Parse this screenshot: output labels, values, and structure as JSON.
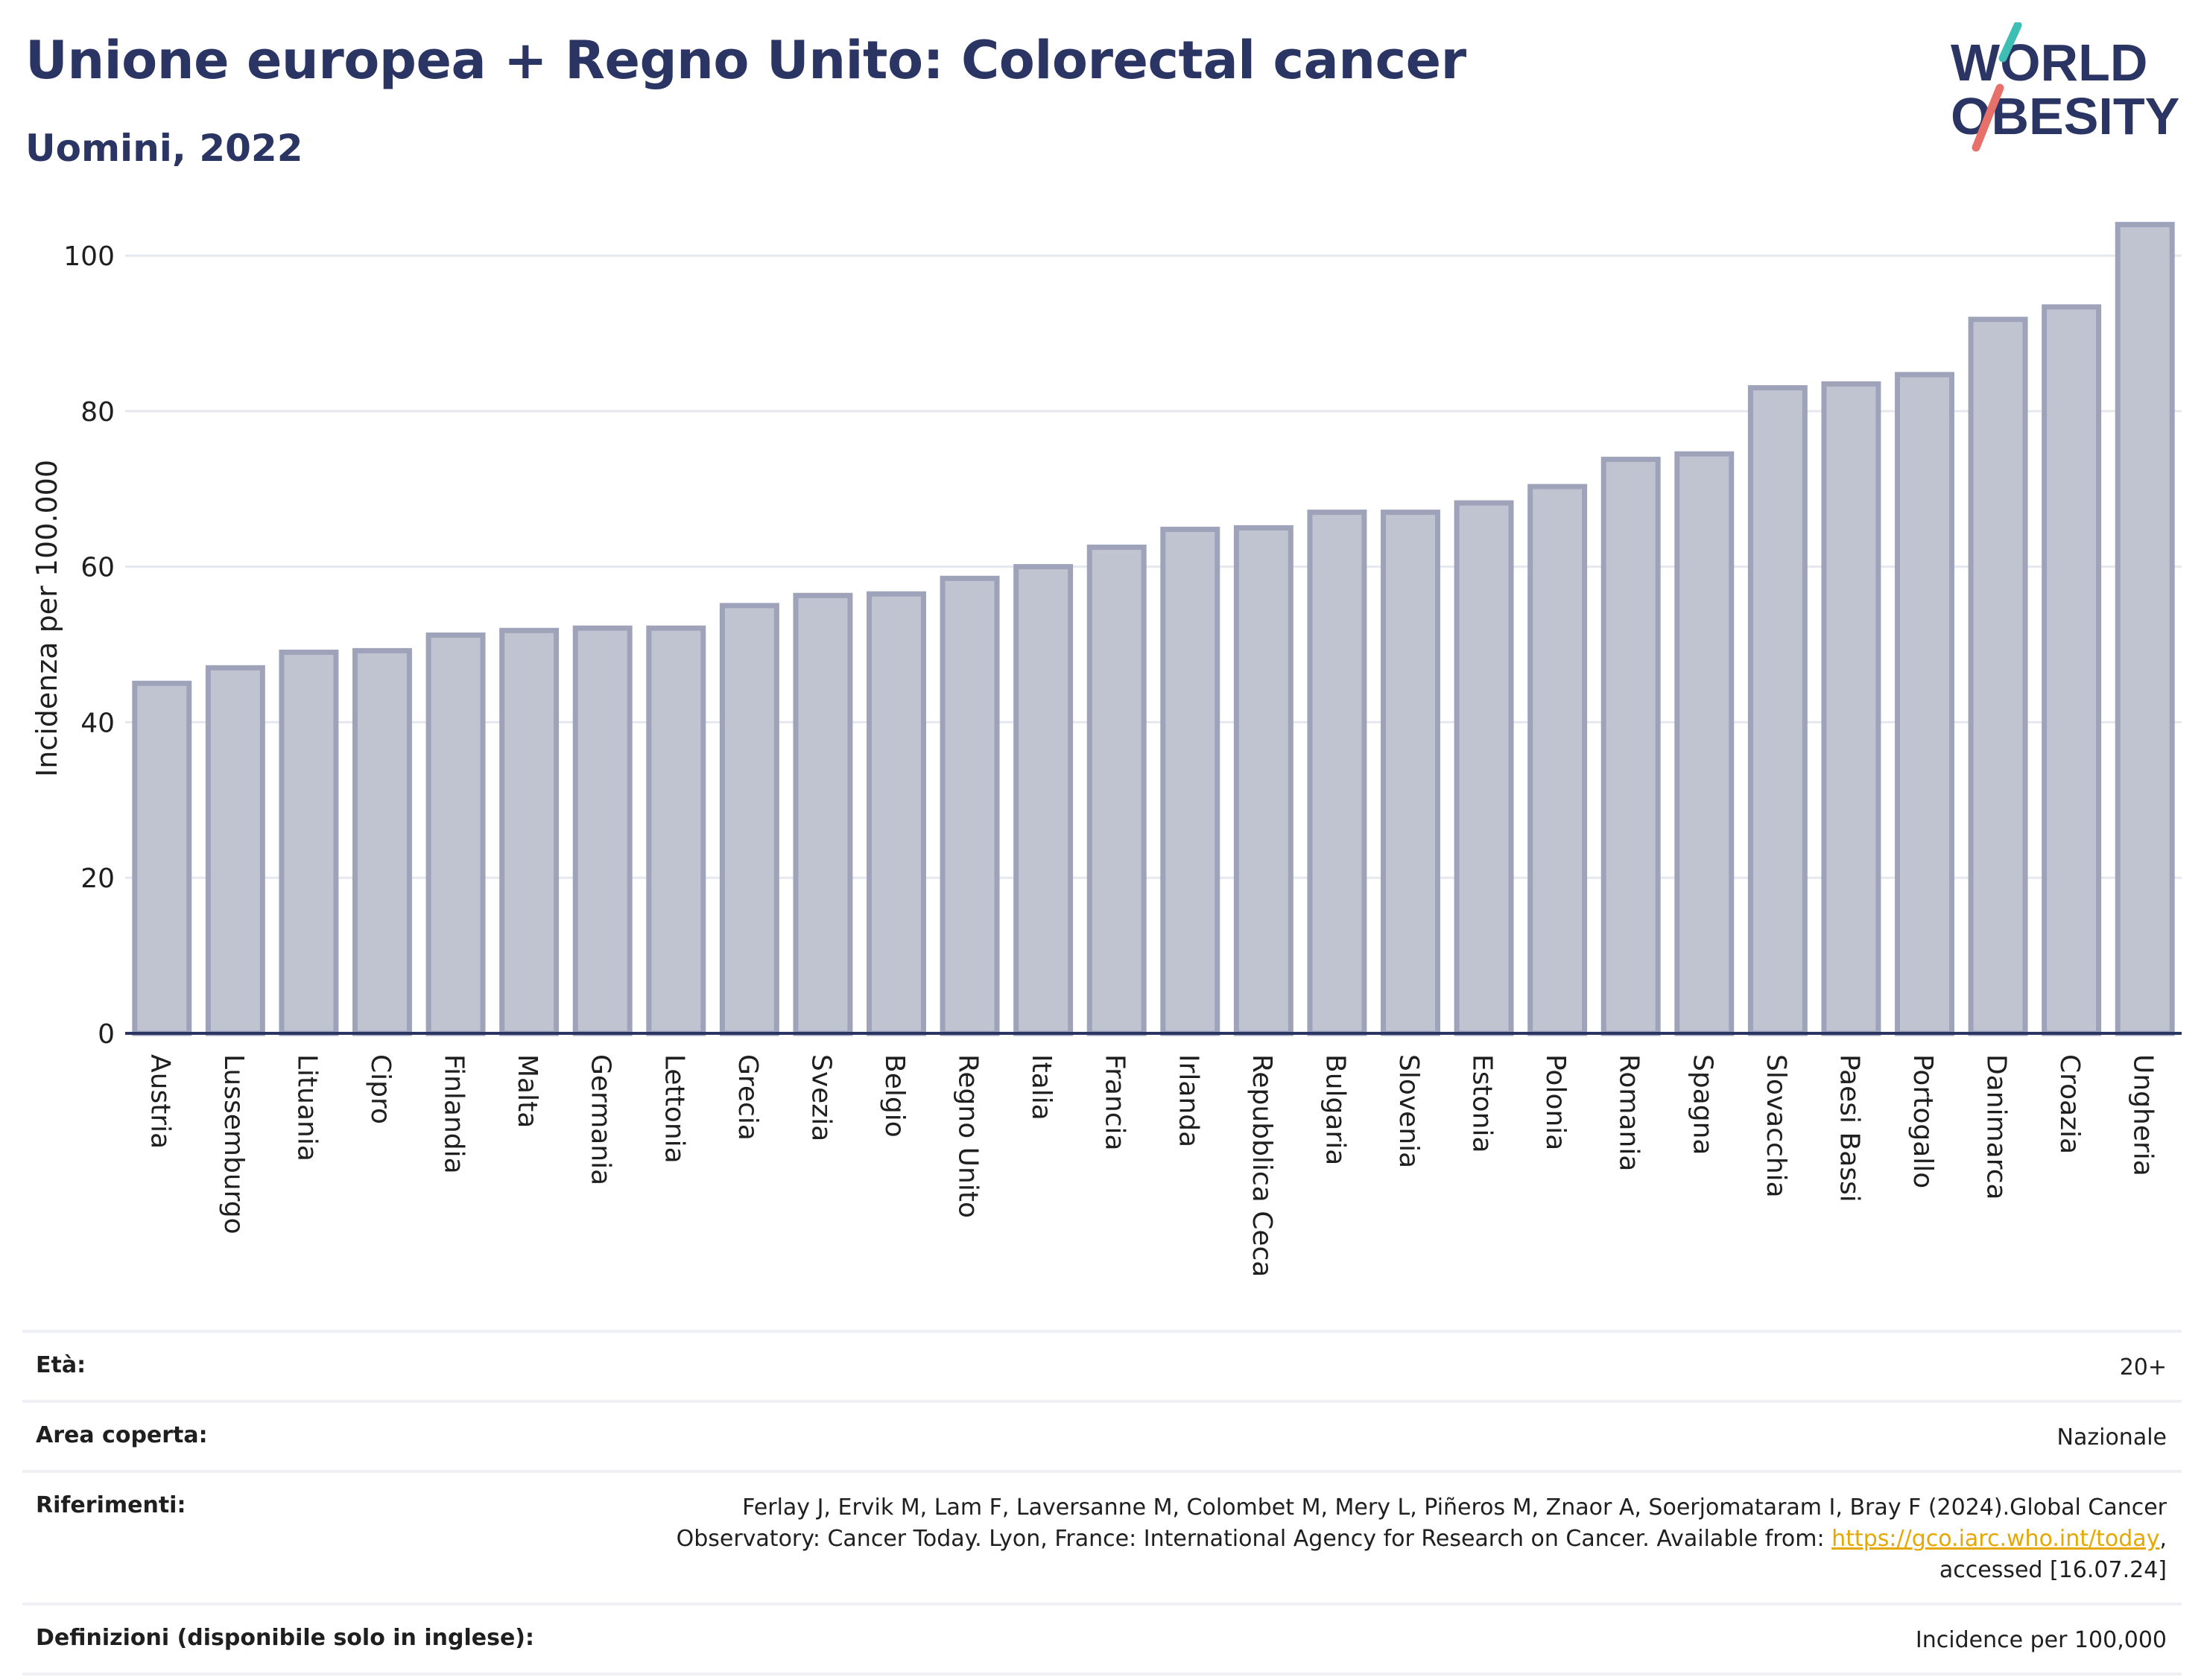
{
  "header": {
    "title": "Unione europea + Regno Unito: Colorectal cancer",
    "subtitle": "Uomini, 2022"
  },
  "logo": {
    "line1": "WORLD",
    "line2": "OBESITY",
    "colors": {
      "text": "#2b3564",
      "slash_top": "#3dbfb5",
      "slash_bottom": "#e8706b"
    }
  },
  "chart_data": {
    "type": "bar",
    "title": "Unione europea + Regno Unito: Colorectal cancer",
    "subtitle": "Uomini, 2022",
    "xlabel": "",
    "ylabel": "Incidenza per 100.000",
    "ylim": [
      0,
      107
    ],
    "yticks": [
      0,
      20,
      40,
      60,
      80,
      100
    ],
    "grid": true,
    "categories": [
      "Austria",
      "Lussemburgo",
      "Lituania",
      "Cipro",
      "Finlandia",
      "Malta",
      "Germania",
      "Lettonia",
      "Grecia",
      "Svezia",
      "Belgio",
      "Regno Unito",
      "Italia",
      "Francia",
      "Irlanda",
      "Repubblica Ceca",
      "Bulgaria",
      "Slovenia",
      "Estonia",
      "Polonia",
      "Romania",
      "Spagna",
      "Slovacchia",
      "Paesi Bassi",
      "Portogallo",
      "Danimarca",
      "Croazia",
      "Ungheria"
    ],
    "values": [
      45.0,
      47.0,
      49.0,
      49.2,
      51.2,
      51.8,
      52.1,
      52.1,
      55.0,
      56.3,
      56.5,
      58.5,
      60.0,
      62.5,
      64.8,
      65.0,
      67.0,
      67.0,
      68.2,
      70.3,
      73.8,
      74.5,
      83.0,
      83.5,
      84.7,
      91.8,
      93.4,
      104.0
    ],
    "colors": {
      "bar_fill": "#c0c3d0",
      "bar_stroke": "#9ea3ba",
      "axis": "#2b3564",
      "grid": "#e6e8ef"
    }
  },
  "info": {
    "rows": [
      {
        "label": "Età:",
        "value": "20+"
      },
      {
        "label": "Area coperta:",
        "value": "Nazionale"
      },
      {
        "label": "Riferimenti:",
        "value_prefix": "Ferlay J, Ervik M, Lam F, Laversanne M, Colombet M, Mery L, Piñeros M, Znaor A, Soerjomataram I, Bray F (2024).Global Cancer Observatory: Cancer Today. Lyon, France: International Agency for Research on Cancer. Available from: ",
        "link": "https://gco.iarc.who.int/today",
        "value_suffix": ", accessed [16.07.24]"
      },
      {
        "label": "Definizioni (disponibile solo in inglese):",
        "value": "Incidence per 100,000"
      }
    ]
  }
}
